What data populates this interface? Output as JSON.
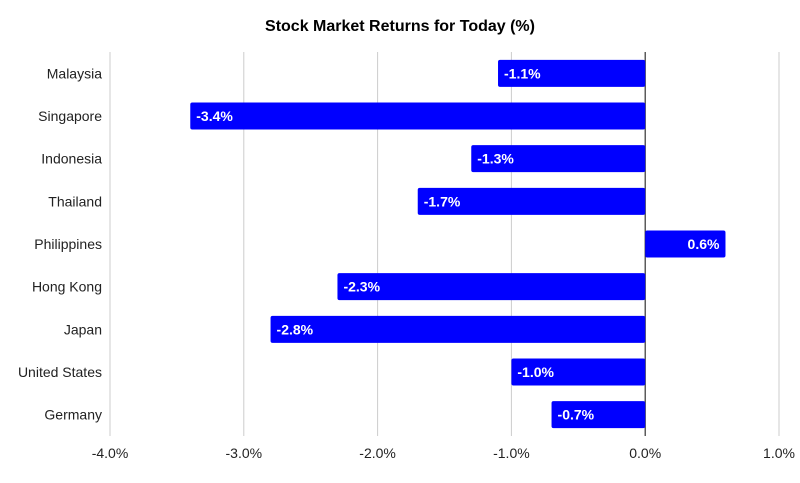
{
  "chart_data": {
    "type": "bar",
    "orientation": "horizontal",
    "title": "Stock Market Returns for Today (%)",
    "xlabel": "",
    "ylabel": "",
    "categories": [
      "Malaysia",
      "Singapore",
      "Indonesia",
      "Thailand",
      "Philippines",
      "Hong Kong",
      "Japan",
      "United States",
      "Germany"
    ],
    "values": [
      -1.1,
      -3.4,
      -1.3,
      -1.7,
      0.6,
      -2.3,
      -2.8,
      -1.0,
      -0.7
    ],
    "data_labels": [
      "-1.1%",
      "-3.4%",
      "-1.3%",
      "-1.7%",
      "0.6%",
      "-2.3%",
      "-2.8%",
      "-1.0%",
      "-0.7%"
    ],
    "xlim": [
      -4.0,
      1.0
    ],
    "xticks": [
      -4.0,
      -3.0,
      -2.0,
      -1.0,
      0.0,
      1.0
    ],
    "xtick_labels": [
      "-4.0%",
      "-3.0%",
      "-2.0%",
      "-1.0%",
      "0.0%",
      "1.0%"
    ],
    "grid": true,
    "bar_color": "#0000ff",
    "label_color": "#ffffff"
  }
}
